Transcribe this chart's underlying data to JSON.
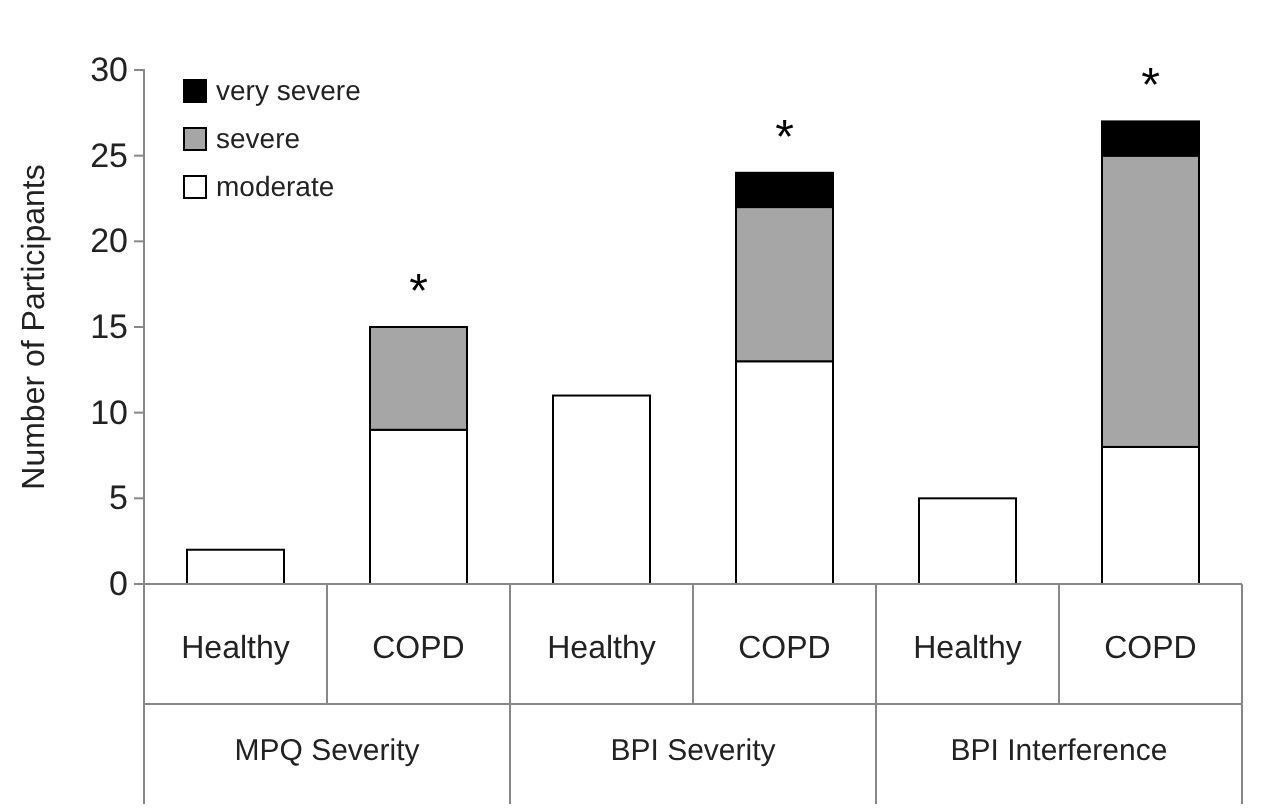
{
  "chart_data": {
    "type": "bar",
    "stacked": true,
    "ylabel": "Number of Participants",
    "categories": [
      "Healthy",
      "COPD",
      "Healthy",
      "COPD",
      "Healthy",
      "COPD"
    ],
    "series": [
      {
        "name": "moderate",
        "color": "#ffffff",
        "values": [
          2,
          9,
          11,
          13,
          5,
          8
        ]
      },
      {
        "name": "severe",
        "color": "#a6a6a6",
        "values": [
          0,
          6,
          0,
          9,
          0,
          17
        ]
      },
      {
        "name": "very severe",
        "color": "#000000",
        "values": [
          0,
          0,
          0,
          2,
          0,
          2
        ]
      }
    ],
    "ylim": [
      0,
      30
    ],
    "yticks": [
      0,
      5,
      10,
      15,
      20,
      25,
      30
    ],
    "legend": "top left",
    "annotations": [
      "MPQ Severity",
      "BPI Severity",
      "BPI Interference",
      "*",
      "*",
      "*"
    ]
  }
}
